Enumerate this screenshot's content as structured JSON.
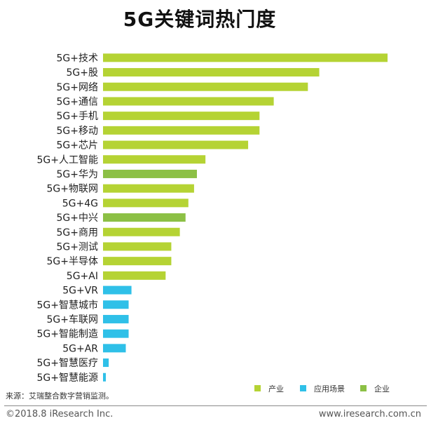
{
  "chart_data": {
    "type": "bar",
    "orientation": "horizontal",
    "title": "5G关键词热门度",
    "categories": [
      "5G+技术",
      "5G+股",
      "5G+网络",
      "5G+通信",
      "5G+手机",
      "5G+移动",
      "5G+芯片",
      "5G+人工智能",
      "5G+华为",
      "5G+物联网",
      "5G+4G",
      "5G+中兴",
      "5G+商用",
      "5G+测试",
      "5G+半导体",
      "5G+AI",
      "5G+VR",
      "5G+智慧城市",
      "5G+车联网",
      "5G+智能制造",
      "5G+AR",
      "5G+智慧医疗",
      "5G+智慧能源"
    ],
    "values": [
      100,
      76,
      72,
      60,
      55,
      55,
      51,
      36,
      33,
      32,
      30,
      29,
      27,
      24,
      24,
      22,
      10,
      9,
      9,
      9,
      8,
      2,
      1
    ],
    "groups": [
      "产业",
      "产业",
      "产业",
      "产业",
      "产业",
      "产业",
      "产业",
      "产业",
      "企业",
      "产业",
      "产业",
      "企业",
      "产业",
      "产业",
      "产业",
      "产业",
      "应用场景",
      "应用场景",
      "应用场景",
      "应用场景",
      "应用场景",
      "应用场景",
      "应用场景"
    ],
    "legend": [
      {
        "name": "产业",
        "color": "#b5d334"
      },
      {
        "name": "应用场景",
        "color": "#2fc0e8"
      },
      {
        "name": "企业",
        "color": "#8cc045"
      }
    ],
    "legend_position": "bottom-right",
    "grid": false,
    "xlim": [
      0,
      100
    ]
  },
  "source": "来源：艾瑞整合数字营销监测。",
  "footer": {
    "copyright": "©2018.8 iResearch Inc.",
    "website": "www.iresearch.com.cn"
  }
}
